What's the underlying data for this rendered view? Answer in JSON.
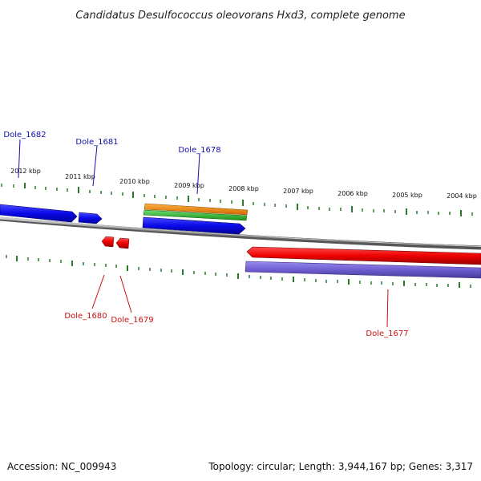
{
  "genome": {
    "title": "Candidatus Desulfococcus oleovorans Hxd3, complete genome",
    "accession_text": "Accession: NC_009943",
    "summary_text": "Topology: circular; Length: 3,944,167 bp; Genes: 3,317"
  },
  "ruler": {
    "labels": [
      "2012 kbp",
      "2011 kbp",
      "2010 kbp",
      "2009 kbp",
      "2008 kbp",
      "2007 kbp",
      "2006 kbp",
      "2005 kbp",
      "2004 kbp"
    ]
  },
  "genes": {
    "forward_labels": [
      "Dole_1682",
      "Dole_1681",
      "Dole_1678"
    ],
    "reverse_labels": [
      "Dole_1680",
      "Dole_1679",
      "Dole_1677"
    ]
  },
  "colors": {
    "forward_gene": "#1010e0",
    "reverse_gene": "#e00000",
    "rrna_orange": "#f08a10",
    "rrna_green": "#30c030",
    "reverse_purple": "#7060d0",
    "backbone": "#888888",
    "tick": "#2a7a2a",
    "forward_label": "#1010b0",
    "reverse_label": "#cc1010"
  }
}
